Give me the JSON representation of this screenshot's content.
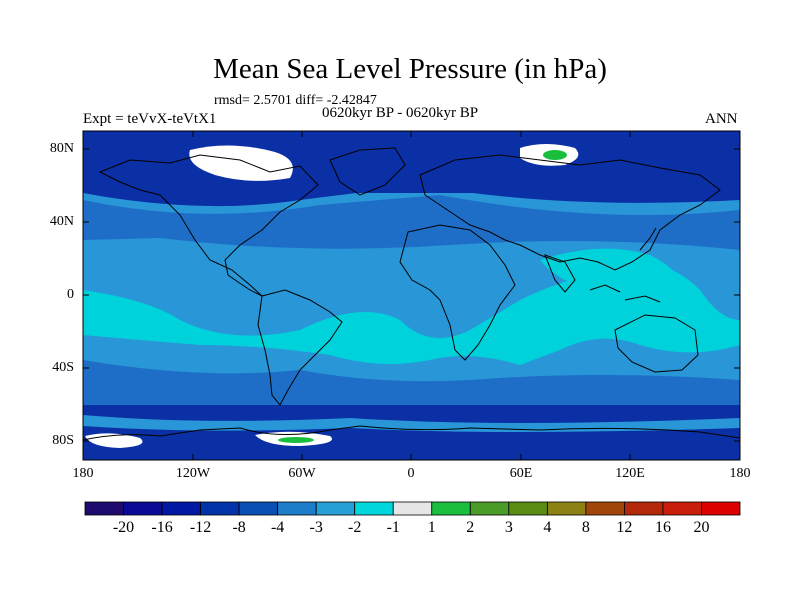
{
  "title": "Mean Sea Level Pressure (in hPa)",
  "stats_line": "rmsd= 2.5701 diff= -2.42847",
  "period_line": "0620kyr BP - 0620kyr BP",
  "experiment_label": "Expt = teVvX-teVtX1",
  "season_label": "ANN",
  "lat_ticks": [
    "80N",
    "40N",
    "0",
    "40S",
    "80S"
  ],
  "lon_ticks": [
    "180",
    "120W",
    "60W",
    "0",
    "60E",
    "120E",
    "180"
  ],
  "colorbar": {
    "labels": [
      "-20",
      "-16",
      "-12",
      "-8",
      "-4",
      "-3",
      "-2",
      "-1",
      "1",
      "2",
      "3",
      "4",
      "8",
      "12",
      "16",
      "20"
    ],
    "colors": [
      "#1e0a6e",
      "#0a0a96",
      "#0019a5",
      "#0033aa",
      "#0a50b4",
      "#1e7dc8",
      "#28a0d7",
      "#00d7dc",
      "#e6e6e6",
      "#19be3c",
      "#4b9b28",
      "#5a8c14",
      "#8c8214",
      "#a0460a",
      "#b4280a",
      "#c81e0a",
      "#dc0000"
    ]
  },
  "field_colors": {
    "deep_negative": "#0b2fa5",
    "mid_negative": "#1e6ec8",
    "weak_negative": "#2896d7",
    "near_zero_negative": "#00d2dc",
    "near_zero": "#ffffff",
    "positive": "#19be3c"
  }
}
